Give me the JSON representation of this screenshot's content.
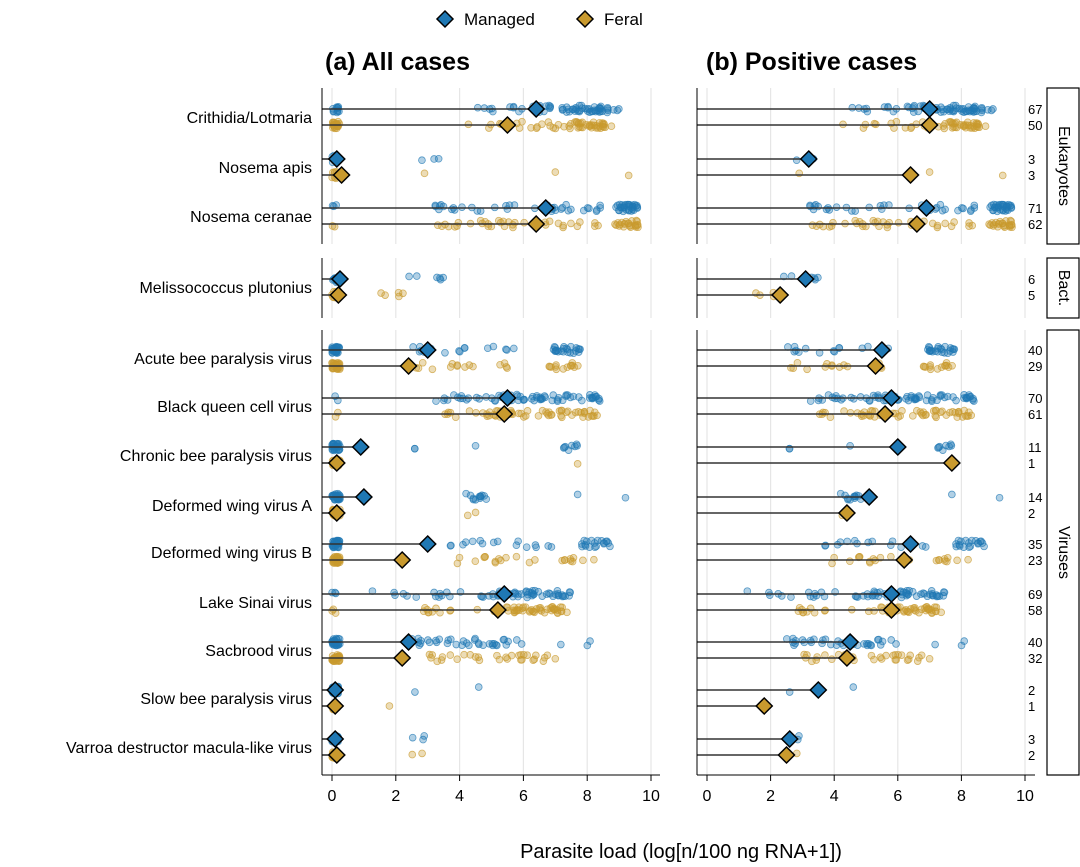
{
  "chart_data": {
    "type": "scatter",
    "xlabel": "Parasite load (log[n/100 ng RNA+1])",
    "xlim": [
      0,
      10
    ],
    "xticks": [
      "0",
      "2",
      "4",
      "6",
      "8",
      "10"
    ],
    "legend": {
      "placement": "top",
      "items": [
        {
          "name": "Managed",
          "color": "#1f78b4"
        },
        {
          "name": "Feral",
          "color": "#c99a2e"
        }
      ]
    },
    "panels": [
      {
        "title": "(a) All cases"
      },
      {
        "title": "(b) Positive cases"
      }
    ],
    "groups": [
      {
        "label": "Eukaryotes",
        "parasites": [
          "Crithidia/Lotmaria",
          "Nosema apis",
          "Nosema ceranae"
        ]
      },
      {
        "label": "Bact.",
        "parasites": [
          "Melissococcus plutonius"
        ]
      },
      {
        "label": "Viruses",
        "parasites": [
          "Acute bee paralysis virus",
          "Black queen cell virus",
          "Chronic bee paralysis virus",
          "Deformed wing virus A",
          "Deformed wing virus B",
          "Lake Sinai virus",
          "Sacbrood virus",
          "Slow bee paralysis virus",
          "Varroa destructor macula-like virus"
        ]
      }
    ],
    "parasites": [
      {
        "name": "Crithidia/Lotmaria",
        "all_mean": {
          "managed": 6.4,
          "feral": 5.5
        },
        "pos_mean": {
          "managed": 7.0,
          "feral": 7.0
        },
        "counts": {
          "managed": "67",
          "feral": "50"
        },
        "managed_points": [
          [
            0.0,
            0.25,
            12
          ],
          [
            4.3,
            6.0,
            10
          ],
          [
            6.0,
            7.2,
            12
          ],
          [
            7.2,
            9.0,
            45
          ]
        ],
        "feral_points": [
          [
            0.0,
            0.25,
            22
          ],
          [
            4.2,
            6.0,
            8
          ],
          [
            6.0,
            7.4,
            10
          ],
          [
            7.4,
            8.8,
            36
          ]
        ]
      },
      {
        "name": "Nosema apis",
        "all_mean": {
          "managed": 0.15,
          "feral": 0.3
        },
        "pos_mean": {
          "managed": 3.2,
          "feral": 6.4
        },
        "counts": {
          "managed": "3",
          "feral": "3"
        },
        "managed_points": [
          [
            0.0,
            0.2,
            10
          ],
          [
            2.8,
            3.4,
            3
          ]
        ],
        "feral_points": [
          [
            0.0,
            0.2,
            10
          ],
          [
            2.9,
            2.9,
            1
          ],
          [
            7.0,
            7.0,
            1
          ],
          [
            9.3,
            9.3,
            1
          ]
        ]
      },
      {
        "name": "Nosema ceranae",
        "all_mean": {
          "managed": 6.7,
          "feral": 6.4
        },
        "pos_mean": {
          "managed": 6.9,
          "feral": 6.6
        },
        "counts": {
          "managed": "71",
          "feral": "62"
        },
        "managed_points": [
          [
            0.0,
            0.2,
            3
          ],
          [
            3.2,
            6.0,
            18
          ],
          [
            6.0,
            8.5,
            20
          ],
          [
            8.9,
            9.6,
            33
          ]
        ],
        "feral_points": [
          [
            0.0,
            0.2,
            2
          ],
          [
            3.0,
            6.0,
            22
          ],
          [
            6.0,
            8.5,
            16
          ],
          [
            8.8,
            9.6,
            24
          ]
        ]
      },
      {
        "name": "Melissococcus plutonius",
        "all_mean": {
          "managed": 0.25,
          "feral": 0.2
        },
        "pos_mean": {
          "managed": 3.1,
          "feral": 2.3
        },
        "counts": {
          "managed": "6",
          "feral": "5"
        },
        "managed_points": [
          [
            0.0,
            0.25,
            15
          ],
          [
            2.3,
            3.8,
            6
          ]
        ],
        "feral_points": [
          [
            0.0,
            0.25,
            15
          ],
          [
            1.5,
            3.0,
            5
          ]
        ]
      },
      {
        "name": "Acute bee paralysis virus",
        "all_mean": {
          "managed": 3.0,
          "feral": 2.4
        },
        "pos_mean": {
          "managed": 5.5,
          "feral": 5.3
        },
        "counts": {
          "managed": "40",
          "feral": "29"
        },
        "managed_points": [
          [
            0.0,
            0.25,
            30
          ],
          [
            2.5,
            6.0,
            16
          ],
          [
            6.8,
            7.8,
            24
          ]
        ],
        "feral_points": [
          [
            0.0,
            0.25,
            30
          ],
          [
            2.5,
            5.6,
            15
          ],
          [
            6.8,
            7.9,
            14
          ]
        ]
      },
      {
        "name": "Black queen cell virus",
        "all_mean": {
          "managed": 5.5,
          "feral": 5.4
        },
        "pos_mean": {
          "managed": 5.8,
          "feral": 5.6
        },
        "counts": {
          "managed": "70",
          "feral": "61"
        },
        "managed_points": [
          [
            0.0,
            0.2,
            2
          ],
          [
            2.8,
            5.0,
            14
          ],
          [
            5.0,
            8.5,
            56
          ]
        ],
        "feral_points": [
          [
            0.0,
            0.2,
            2
          ],
          [
            3.5,
            5.0,
            12
          ],
          [
            5.0,
            8.5,
            49
          ]
        ]
      },
      {
        "name": "Chronic bee paralysis virus",
        "all_mean": {
          "managed": 0.9,
          "feral": 0.15
        },
        "pos_mean": {
          "managed": 6.0,
          "feral": 7.7
        },
        "counts": {
          "managed": "11",
          "feral": "1"
        },
        "managed_points": [
          [
            0.0,
            0.25,
            30
          ],
          [
            2.4,
            2.6,
            2
          ],
          [
            4.5,
            4.5,
            1
          ],
          [
            7.2,
            7.9,
            8
          ]
        ],
        "feral_points": [
          [
            0.0,
            0.25,
            30
          ],
          [
            7.7,
            7.7,
            1
          ]
        ]
      },
      {
        "name": "Deformed wing virus A",
        "all_mean": {
          "managed": 1.0,
          "feral": 0.15
        },
        "pos_mean": {
          "managed": 5.1,
          "feral": 4.4
        },
        "counts": {
          "managed": "14",
          "feral": "2"
        },
        "managed_points": [
          [
            0.0,
            0.25,
            30
          ],
          [
            4.2,
            5.0,
            12
          ],
          [
            7.7,
            7.7,
            1
          ],
          [
            9.2,
            9.2,
            1
          ]
        ],
        "feral_points": [
          [
            0.0,
            0.25,
            30
          ],
          [
            4.2,
            4.6,
            2
          ]
        ]
      },
      {
        "name": "Deformed wing virus B",
        "all_mean": {
          "managed": 3.0,
          "feral": 2.2
        },
        "pos_mean": {
          "managed": 6.4,
          "feral": 6.2
        },
        "counts": {
          "managed": "35",
          "feral": "23"
        },
        "managed_points": [
          [
            0.0,
            0.25,
            30
          ],
          [
            3.5,
            7.0,
            16
          ],
          [
            7.8,
            8.8,
            19
          ]
        ],
        "feral_points": [
          [
            0.0,
            0.25,
            30
          ],
          [
            3.8,
            6.5,
            14
          ],
          [
            7.2,
            8.4,
            9
          ]
        ]
      },
      {
        "name": "Lake Sinai virus",
        "all_mean": {
          "managed": 5.4,
          "feral": 5.2
        },
        "pos_mean": {
          "managed": 5.8,
          "feral": 5.8
        },
        "counts": {
          "managed": "69",
          "feral": "58"
        },
        "managed_points": [
          [
            0.0,
            0.2,
            3
          ],
          [
            1.2,
            5.0,
            18
          ],
          [
            5.0,
            7.5,
            48
          ]
        ],
        "feral_points": [
          [
            0.0,
            0.2,
            3
          ],
          [
            2.8,
            5.5,
            14
          ],
          [
            5.5,
            7.4,
            44
          ]
        ]
      },
      {
        "name": "Sacbrood virus",
        "all_mean": {
          "managed": 2.4,
          "feral": 2.2
        },
        "pos_mean": {
          "managed": 4.5,
          "feral": 4.4
        },
        "counts": {
          "managed": "40",
          "feral": "32"
        },
        "managed_points": [
          [
            0.0,
            0.25,
            30
          ],
          [
            2.5,
            6.0,
            36
          ],
          [
            7.0,
            8.5,
            3
          ]
        ],
        "feral_points": [
          [
            0.0,
            0.25,
            30
          ],
          [
            2.8,
            6.8,
            30
          ],
          [
            7.0,
            7.0,
            1
          ]
        ]
      },
      {
        "name": "Slow bee paralysis virus",
        "all_mean": {
          "managed": 0.1,
          "feral": 0.1
        },
        "pos_mean": {
          "managed": 3.5,
          "feral": 1.8
        },
        "counts": {
          "managed": "2",
          "feral": "1"
        },
        "managed_points": [
          [
            0.0,
            0.2,
            30
          ],
          [
            2.6,
            2.6,
            1
          ],
          [
            4.6,
            4.6,
            1
          ]
        ],
        "feral_points": [
          [
            0.0,
            0.2,
            30
          ],
          [
            1.8,
            1.8,
            1
          ]
        ]
      },
      {
        "name": "Varroa destructor macula-like virus",
        "all_mean": {
          "managed": 0.1,
          "feral": 0.15
        },
        "pos_mean": {
          "managed": 2.6,
          "feral": 2.5
        },
        "counts": {
          "managed": "3",
          "feral": "2"
        },
        "managed_points": [
          [
            0.0,
            0.2,
            30
          ],
          [
            2.3,
            3.0,
            3
          ]
        ],
        "feral_points": [
          [
            0.0,
            0.2,
            30
          ],
          [
            2.3,
            2.9,
            2
          ]
        ]
      }
    ]
  }
}
